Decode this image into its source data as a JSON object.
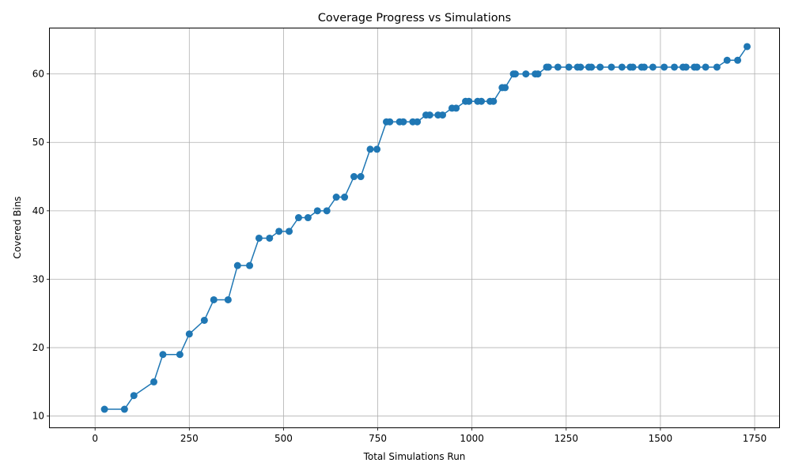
{
  "chart_data": {
    "type": "line",
    "title": "Coverage Progress vs Simulations",
    "xlabel": "Total Simulations Run",
    "ylabel": "Covered Bins",
    "xlim": [
      -120,
      1815
    ],
    "ylim": [
      8.35,
      66.65
    ],
    "xticks": [
      0,
      250,
      500,
      750,
      1000,
      1250,
      1500,
      1750
    ],
    "yticks": [
      10,
      20,
      30,
      40,
      50,
      60
    ],
    "grid": true,
    "colors": {
      "series": "#1f77b4",
      "grid": "#b0b0b0"
    },
    "series": [
      {
        "x": [
          25,
          78,
          103,
          156,
          180,
          225,
          250,
          290,
          315,
          353,
          378,
          410,
          435,
          463,
          488,
          515,
          540,
          565,
          590,
          615,
          640,
          662,
          687,
          705,
          730,
          748,
          773,
          782,
          808,
          818,
          843,
          855,
          878,
          888,
          910,
          922,
          947,
          958,
          983,
          992,
          1015,
          1025,
          1048,
          1057,
          1080,
          1088,
          1110,
          1115,
          1143,
          1168,
          1175,
          1198,
          1203,
          1228,
          1257,
          1280,
          1288,
          1310,
          1317,
          1340,
          1370,
          1398,
          1420,
          1427,
          1450,
          1457,
          1480,
          1510,
          1537,
          1560,
          1568,
          1590,
          1597,
          1620,
          1650,
          1677,
          1705,
          1730
        ],
        "y": [
          11,
          11,
          13,
          15,
          19,
          19,
          22,
          24,
          27,
          27,
          32,
          32,
          36,
          36,
          37,
          37,
          39,
          39,
          40,
          40,
          42,
          42,
          45,
          45,
          49,
          49,
          53,
          53,
          53,
          53,
          53,
          53,
          54,
          54,
          54,
          54,
          55,
          55,
          56,
          56,
          56,
          56,
          56,
          56,
          58,
          58,
          60,
          60,
          60,
          60,
          60,
          61,
          61,
          61,
          61,
          61,
          61,
          61,
          61,
          61,
          61,
          61,
          61,
          61,
          61,
          61,
          61,
          61,
          61,
          61,
          61,
          61,
          61,
          61,
          61,
          62,
          62,
          64
        ]
      }
    ]
  }
}
